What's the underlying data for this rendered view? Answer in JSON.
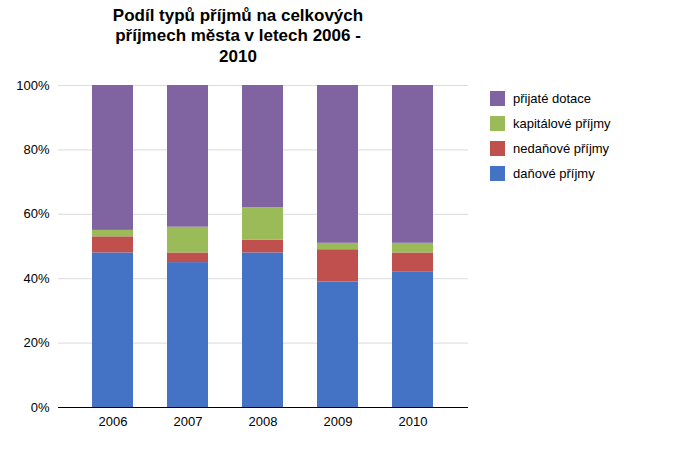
{
  "chart_data": {
    "type": "bar",
    "title": "Podíl typů příjmů na celkových\npříjmech města v letech 2006 -\n2010",
    "categories": [
      "2006",
      "2007",
      "2008",
      "2009",
      "2010"
    ],
    "series": [
      {
        "name": "daňové příjmy",
        "color": "#4472C4",
        "values": [
          48,
          45,
          48,
          39,
          42
        ]
      },
      {
        "name": "nedaňové příjmy",
        "color": "#C0504D",
        "values": [
          5,
          3,
          4,
          10,
          6
        ]
      },
      {
        "name": "kapitálové příjmy",
        "color": "#9BBB59",
        "values": [
          2,
          8,
          10,
          2,
          3
        ]
      },
      {
        "name": "přijaté dotace",
        "color": "#8064A2",
        "values": [
          45,
          44,
          38,
          49,
          49
        ]
      }
    ],
    "stacked": true,
    "ylim": [
      0,
      100
    ],
    "yticks": [
      {
        "value": 0,
        "label": "0%"
      },
      {
        "value": 20,
        "label": "20%"
      },
      {
        "value": 40,
        "label": "40%"
      },
      {
        "value": 60,
        "label": "60%"
      },
      {
        "value": 80,
        "label": "80%"
      },
      {
        "value": 100,
        "label": "100%"
      }
    ],
    "grid": true,
    "legend": "right"
  }
}
